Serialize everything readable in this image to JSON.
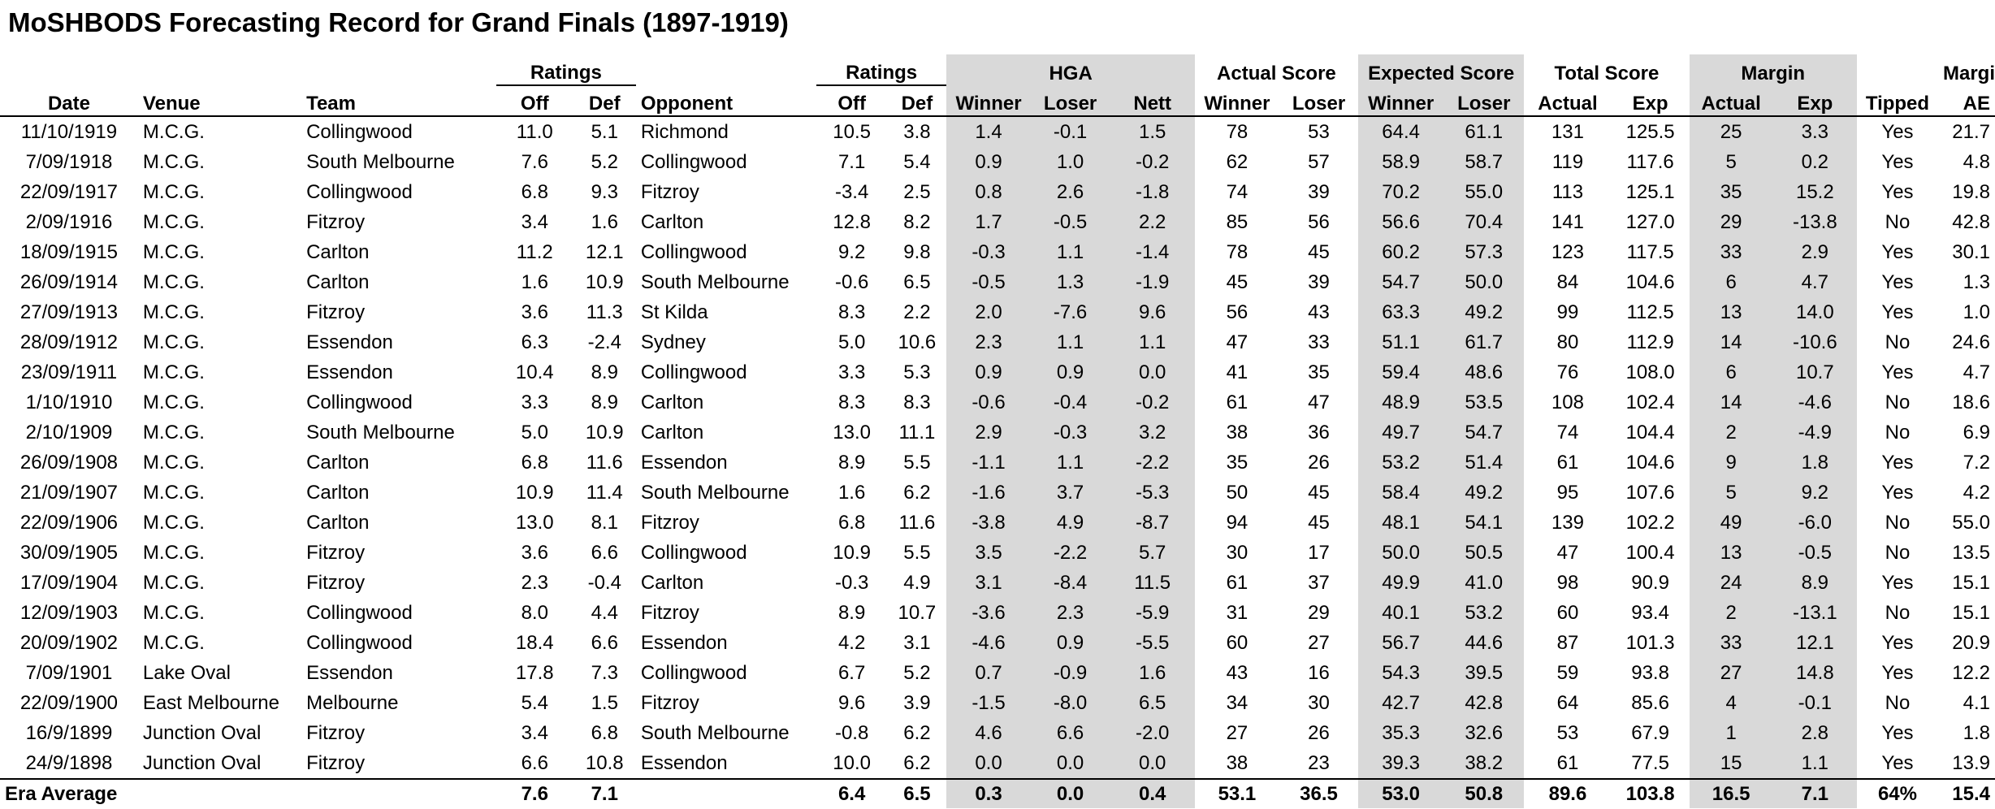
{
  "title": "MoSHBODS Forecasting Record for Grand Finals (1897-1919)",
  "groups": {
    "ratings1": "Ratings",
    "ratings2": "Ratings",
    "hga": "HGA",
    "actual_score": "Actual Score",
    "expected_score": "Expected Score",
    "total_score": "Total Score",
    "margin": "Margin",
    "margin_ae_top": "Margin"
  },
  "headers": {
    "date": "Date",
    "venue": "Venue",
    "team": "Team",
    "off1": "Off",
    "def1": "Def",
    "opponent": "Opponent",
    "off2": "Off",
    "def2": "Def",
    "hga_winner": "Winner",
    "hga_loser": "Loser",
    "hga_nett": "Nett",
    "as_winner": "Winner",
    "as_loser": "Loser",
    "es_winner": "Winner",
    "es_loser": "Loser",
    "ts_actual": "Actual",
    "ts_exp": "Exp",
    "m_actual": "Actual",
    "m_exp": "Exp",
    "tipped": "Tipped",
    "margin_ae": "AE"
  },
  "rows": [
    [
      "11/10/1919",
      "M.C.G.",
      "Collingwood",
      "11.0",
      "5.1",
      "Richmond",
      "10.5",
      "3.8",
      "1.4",
      "-0.1",
      "1.5",
      "78",
      "53",
      "64.4",
      "61.1",
      "131",
      "125.5",
      "25",
      "3.3",
      "Yes",
      "21.7"
    ],
    [
      "7/09/1918",
      "M.C.G.",
      "South Melbourne",
      "7.6",
      "5.2",
      "Collingwood",
      "7.1",
      "5.4",
      "0.9",
      "1.0",
      "-0.2",
      "62",
      "57",
      "58.9",
      "58.7",
      "119",
      "117.6",
      "5",
      "0.2",
      "Yes",
      "4.8"
    ],
    [
      "22/09/1917",
      "M.C.G.",
      "Collingwood",
      "6.8",
      "9.3",
      "Fitzroy",
      "-3.4",
      "2.5",
      "0.8",
      "2.6",
      "-1.8",
      "74",
      "39",
      "70.2",
      "55.0",
      "113",
      "125.1",
      "35",
      "15.2",
      "Yes",
      "19.8"
    ],
    [
      "2/09/1916",
      "M.C.G.",
      "Fitzroy",
      "3.4",
      "1.6",
      "Carlton",
      "12.8",
      "8.2",
      "1.7",
      "-0.5",
      "2.2",
      "85",
      "56",
      "56.6",
      "70.4",
      "141",
      "127.0",
      "29",
      "-13.8",
      "No",
      "42.8"
    ],
    [
      "18/09/1915",
      "M.C.G.",
      "Carlton",
      "11.2",
      "12.1",
      "Collingwood",
      "9.2",
      "9.8",
      "-0.3",
      "1.1",
      "-1.4",
      "78",
      "45",
      "60.2",
      "57.3",
      "123",
      "117.5",
      "33",
      "2.9",
      "Yes",
      "30.1"
    ],
    [
      "26/09/1914",
      "M.C.G.",
      "Carlton",
      "1.6",
      "10.9",
      "South Melbourne",
      "-0.6",
      "6.5",
      "-0.5",
      "1.3",
      "-1.9",
      "45",
      "39",
      "54.7",
      "50.0",
      "84",
      "104.6",
      "6",
      "4.7",
      "Yes",
      "1.3"
    ],
    [
      "27/09/1913",
      "M.C.G.",
      "Fitzroy",
      "3.6",
      "11.3",
      "St Kilda",
      "8.3",
      "2.2",
      "2.0",
      "-7.6",
      "9.6",
      "56",
      "43",
      "63.3",
      "49.2",
      "99",
      "112.5",
      "13",
      "14.0",
      "Yes",
      "1.0"
    ],
    [
      "28/09/1912",
      "M.C.G.",
      "Essendon",
      "6.3",
      "-2.4",
      "Sydney",
      "5.0",
      "10.6",
      "2.3",
      "1.1",
      "1.1",
      "47",
      "33",
      "51.1",
      "61.7",
      "80",
      "112.9",
      "14",
      "-10.6",
      "No",
      "24.6"
    ],
    [
      "23/09/1911",
      "M.C.G.",
      "Essendon",
      "10.4",
      "8.9",
      "Collingwood",
      "3.3",
      "5.3",
      "0.9",
      "0.9",
      "0.0",
      "41",
      "35",
      "59.4",
      "48.6",
      "76",
      "108.0",
      "6",
      "10.7",
      "Yes",
      "4.7"
    ],
    [
      "1/10/1910",
      "M.C.G.",
      "Collingwood",
      "3.3",
      "8.9",
      "Carlton",
      "8.3",
      "8.3",
      "-0.6",
      "-0.4",
      "-0.2",
      "61",
      "47",
      "48.9",
      "53.5",
      "108",
      "102.4",
      "14",
      "-4.6",
      "No",
      "18.6"
    ],
    [
      "2/10/1909",
      "M.C.G.",
      "South Melbourne",
      "5.0",
      "10.9",
      "Carlton",
      "13.0",
      "11.1",
      "2.9",
      "-0.3",
      "3.2",
      "38",
      "36",
      "49.7",
      "54.7",
      "74",
      "104.4",
      "2",
      "-4.9",
      "No",
      "6.9"
    ],
    [
      "26/09/1908",
      "M.C.G.",
      "Carlton",
      "6.8",
      "11.6",
      "Essendon",
      "8.9",
      "5.5",
      "-1.1",
      "1.1",
      "-2.2",
      "35",
      "26",
      "53.2",
      "51.4",
      "61",
      "104.6",
      "9",
      "1.8",
      "Yes",
      "7.2"
    ],
    [
      "21/09/1907",
      "M.C.G.",
      "Carlton",
      "10.9",
      "11.4",
      "South Melbourne",
      "1.6",
      "6.2",
      "-1.6",
      "3.7",
      "-5.3",
      "50",
      "45",
      "58.4",
      "49.2",
      "95",
      "107.6",
      "5",
      "9.2",
      "Yes",
      "4.2"
    ],
    [
      "22/09/1906",
      "M.C.G.",
      "Carlton",
      "13.0",
      "8.1",
      "Fitzroy",
      "6.8",
      "11.6",
      "-3.8",
      "4.9",
      "-8.7",
      "94",
      "45",
      "48.1",
      "54.1",
      "139",
      "102.2",
      "49",
      "-6.0",
      "No",
      "55.0"
    ],
    [
      "30/09/1905",
      "M.C.G.",
      "Fitzroy",
      "3.6",
      "6.6",
      "Collingwood",
      "10.9",
      "5.5",
      "3.5",
      "-2.2",
      "5.7",
      "30",
      "17",
      "50.0",
      "50.5",
      "47",
      "100.4",
      "13",
      "-0.5",
      "No",
      "13.5"
    ],
    [
      "17/09/1904",
      "M.C.G.",
      "Fitzroy",
      "2.3",
      "-0.4",
      "Carlton",
      "-0.3",
      "4.9",
      "3.1",
      "-8.4",
      "11.5",
      "61",
      "37",
      "49.9",
      "41.0",
      "98",
      "90.9",
      "24",
      "8.9",
      "Yes",
      "15.1"
    ],
    [
      "12/09/1903",
      "M.C.G.",
      "Collingwood",
      "8.0",
      "4.4",
      "Fitzroy",
      "8.9",
      "10.7",
      "-3.6",
      "2.3",
      "-5.9",
      "31",
      "29",
      "40.1",
      "53.2",
      "60",
      "93.4",
      "2",
      "-13.1",
      "No",
      "15.1"
    ],
    [
      "20/09/1902",
      "M.C.G.",
      "Collingwood",
      "18.4",
      "6.6",
      "Essendon",
      "4.2",
      "3.1",
      "-4.6",
      "0.9",
      "-5.5",
      "60",
      "27",
      "56.7",
      "44.6",
      "87",
      "101.3",
      "33",
      "12.1",
      "Yes",
      "20.9"
    ],
    [
      "7/09/1901",
      "Lake Oval",
      "Essendon",
      "17.8",
      "7.3",
      "Collingwood",
      "6.7",
      "5.2",
      "0.7",
      "-0.9",
      "1.6",
      "43",
      "16",
      "54.3",
      "39.5",
      "59",
      "93.8",
      "27",
      "14.8",
      "Yes",
      "12.2"
    ],
    [
      "22/09/1900",
      "East Melbourne",
      "Melbourne",
      "5.4",
      "1.5",
      "Fitzroy",
      "9.6",
      "3.9",
      "-1.5",
      "-8.0",
      "6.5",
      "34",
      "30",
      "42.7",
      "42.8",
      "64",
      "85.6",
      "4",
      "-0.1",
      "No",
      "4.1"
    ],
    [
      "16/9/1899",
      "Junction Oval",
      "Fitzroy",
      "3.4",
      "6.8",
      "South Melbourne",
      "-0.8",
      "6.2",
      "4.6",
      "6.6",
      "-2.0",
      "27",
      "26",
      "35.3",
      "32.6",
      "53",
      "67.9",
      "1",
      "2.8",
      "Yes",
      "1.8"
    ],
    [
      "24/9/1898",
      "Junction Oval",
      "Fitzroy",
      "6.6",
      "10.8",
      "Essendon",
      "10.0",
      "6.2",
      "0.0",
      "0.0",
      "0.0",
      "38",
      "23",
      "39.3",
      "38.2",
      "61",
      "77.5",
      "15",
      "1.1",
      "Yes",
      "13.9"
    ]
  ],
  "footer": [
    "Era Average",
    "",
    "",
    "7.6",
    "7.1",
    "",
    "6.4",
    "6.5",
    "0.3",
    "0.0",
    "0.4",
    "53.1",
    "36.5",
    "53.0",
    "50.8",
    "89.6",
    "103.8",
    "16.5",
    "7.1",
    "64%",
    "15.4"
  ],
  "colors": {
    "shade": "#d9d9d9"
  }
}
